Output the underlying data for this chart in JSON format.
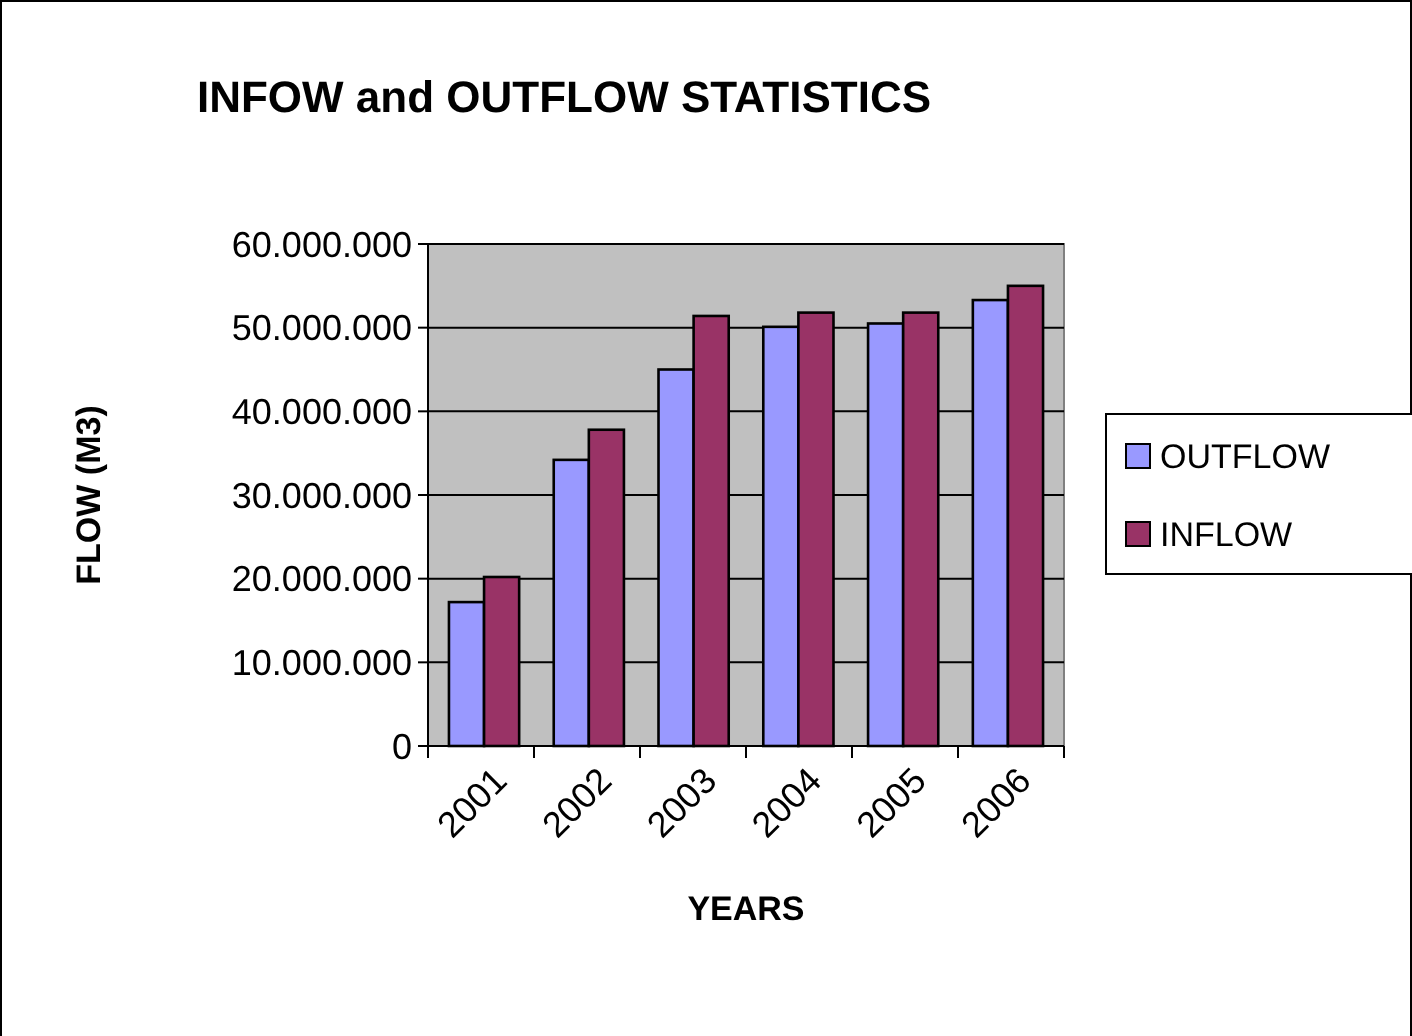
{
  "chart_data": {
    "type": "bar",
    "title": "INFOW and OUTFLOW STATISTICS",
    "xlabel": "YEARS",
    "ylabel": "FLOW (M3)",
    "categories": [
      "2001",
      "2002",
      "2003",
      "2004",
      "2005",
      "2006"
    ],
    "series": [
      {
        "name": "OUTFLOW",
        "color": "#9999ff",
        "values": [
          17200000,
          34200000,
          45000000,
          50100000,
          50500000,
          53300000
        ]
      },
      {
        "name": "INFLOW",
        "color": "#993366",
        "values": [
          20200000,
          37800000,
          51400000,
          51800000,
          51800000,
          55000000
        ]
      }
    ],
    "ylim": [
      0,
      60000000
    ],
    "yticks": [
      {
        "value": 0,
        "label": "0"
      },
      {
        "value": 10000000,
        "label": "10.000.000"
      },
      {
        "value": 20000000,
        "label": "20.000.000"
      },
      {
        "value": 30000000,
        "label": "30.000.000"
      },
      {
        "value": 40000000,
        "label": "40.000.000"
      },
      {
        "value": 50000000,
        "label": "50.000.000"
      },
      {
        "value": 60000000,
        "label": "60.000.000"
      }
    ],
    "grid": "y",
    "legend": "right"
  }
}
